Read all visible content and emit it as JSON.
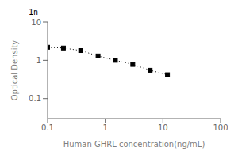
{
  "chart_data": {
    "type": "line",
    "x": [
      0.1,
      0.188,
      0.375,
      0.75,
      1.5,
      3.0,
      6.0,
      12.0
    ],
    "values": [
      2.2,
      2.1,
      1.8,
      1.3,
      1.0,
      0.78,
      0.55,
      0.42
    ],
    "xlabel": "Human GHRL concentration(ng/mL)",
    "ylabel": "Optical Density",
    "xlim": [
      0.1,
      100
    ],
    "ylim": [
      0.03,
      10
    ],
    "xticks": [
      0.1,
      1,
      10,
      100
    ],
    "yticks": [
      0.1,
      1,
      10
    ],
    "log": true,
    "grid": false,
    "color": "black",
    "marker": "square",
    "line_style": "dotted",
    "annotations": [
      "1n"
    ]
  }
}
